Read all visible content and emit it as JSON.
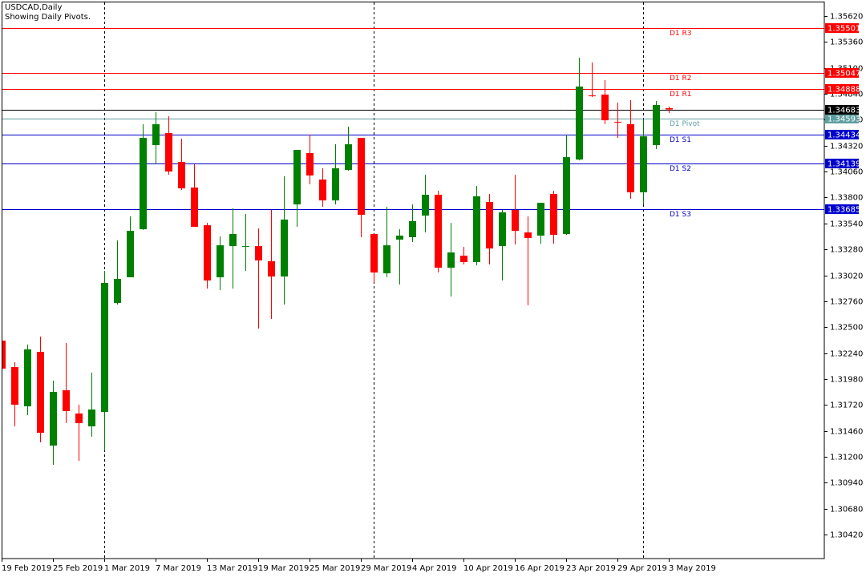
{
  "chart_data": {
    "type": "candlestick",
    "title": "USDCAD,Daily",
    "subtitle": "Showing Daily Pivots.",
    "up_color": "#008000",
    "down_color": "#ff0000",
    "categories": [
      "19 Feb 2019",
      null,
      null,
      null,
      "25 Feb 2019",
      null,
      null,
      null,
      "1 Mar 2019",
      null,
      null,
      null,
      "7 Mar 2019",
      null,
      null,
      null,
      "13 Mar 2019",
      null,
      null,
      null,
      "19 Mar 2019",
      null,
      null,
      null,
      "25 Mar 2019",
      null,
      null,
      null,
      "29 Mar 2019",
      null,
      null,
      null,
      "4 Apr 2019",
      null,
      null,
      null,
      "10 Apr 2019",
      null,
      null,
      null,
      "16 Apr 2019",
      null,
      null,
      null,
      "23 Apr 2019",
      null,
      null,
      null,
      "29 Apr 2019",
      null,
      null,
      null,
      "3 May 2019"
    ],
    "open": [
      1.32365,
      1.321,
      1.31706,
      1.32252,
      1.31312,
      1.31867,
      1.31634,
      1.31505,
      1.3165,
      1.32743,
      1.33,
      1.33482,
      1.34326,
      1.34447,
      1.34157,
      1.339,
      1.33522,
      1.33,
      1.33313,
      1.33305,
      1.33313,
      1.33161,
      1.33008,
      1.33731,
      1.34246,
      1.3398,
      1.33771,
      1.34077,
      1.34398,
      1.33434,
      1.3304,
      1.33378,
      1.33402,
      1.33619,
      1.33828,
      1.33096,
      1.33217,
      1.33153,
      1.33755,
      1.33313,
      1.33675,
      1.3345,
      1.33418,
      1.33836,
      1.33434,
      1.34181,
      1.34824,
      1.34832,
      1.34559,
      1.34535,
      1.33852,
      1.34326,
      1.34696
    ],
    "high": [
      1.32381,
      1.32148,
      1.32325,
      1.32405,
      1.31963,
      1.32341,
      1.31722,
      1.32044,
      1.33064,
      1.3337,
      1.33611,
      1.34535,
      1.34656,
      1.34615,
      1.3439,
      1.34133,
      1.33546,
      1.3341,
      1.33691,
      1.33635,
      1.3349,
      1.33675,
      1.34013,
      1.34278,
      1.3443,
      1.34093,
      1.34334,
      1.34511,
      1.34398,
      1.33434,
      1.33707,
      1.33482,
      1.33731,
      1.34029,
      1.33868,
      1.33546,
      1.33305,
      1.33916,
      1.33836,
      1.33675,
      1.34029,
      1.33611,
      1.33747,
      1.33868,
      1.3443,
      1.35202,
      1.35154,
      1.34977,
      1.34752,
      1.34776,
      1.34575,
      1.34768,
      1.34712
    ],
    "low": [
      1.32068,
      1.31505,
      1.31618,
      1.31344,
      1.31119,
      1.31537,
      1.31159,
      1.31401,
      1.31264,
      1.32727,
      1.33,
      1.33474,
      1.34133,
      1.34029,
      1.33876,
      1.33506,
      1.32887,
      1.32871,
      1.32887,
      1.33064,
      1.32486,
      1.32582,
      1.32727,
      1.33506,
      1.33932,
      1.33707,
      1.33731,
      1.34069,
      1.33402,
      1.32952,
      1.33,
      1.32928,
      1.33354,
      1.3345,
      1.33048,
      1.32807,
      1.33129,
      1.3312,
      1.33129,
      1.32968,
      1.33329,
      1.32719,
      1.33337,
      1.33337,
      1.33426,
      1.34173,
      1.34808,
      1.34535,
      1.34398,
      1.33788,
      1.33731,
      1.34286,
      1.34648
    ],
    "close": [
      1.32084,
      1.31722,
      1.32277,
      1.31441,
      1.31851,
      1.31658,
      1.31537,
      1.31674,
      1.32944,
      1.32984,
      1.33466,
      1.34398,
      1.34535,
      1.34061,
      1.33892,
      1.33506,
      1.32968,
      1.33321,
      1.33434,
      1.33313,
      1.33169,
      1.33008,
      1.33579,
      1.34278,
      1.34021,
      1.33771,
      1.34093,
      1.34334,
      1.33627,
      1.33048,
      1.33321,
      1.33418,
      1.33563,
      1.33828,
      1.33096,
      1.33249,
      1.33153,
      1.33812,
      1.33289,
      1.33651,
      1.33466,
      1.33394,
      1.33747,
      1.33426,
      1.34205,
      1.34913,
      1.34816,
      1.34575,
      1.34551,
      1.33852,
      1.34414,
      1.34728,
      1.34683
    ],
    "ylim": [
      1.30179,
      1.35765
    ],
    "yticks": [
      {
        "value": 1.3562,
        "label": "1.35620"
      },
      {
        "value": 1.3536,
        "label": "1.35360"
      },
      {
        "value": 1.351,
        "label": "1.35100"
      },
      {
        "value": 1.3484,
        "label": "1.34840"
      },
      {
        "value": 1.3458,
        "label": "1.34580"
      },
      {
        "value": 1.3432,
        "label": "1.34320"
      },
      {
        "value": 1.3406,
        "label": "1.34060"
      },
      {
        "value": 1.338,
        "label": "1.33800"
      },
      {
        "value": 1.3354,
        "label": "1.33540"
      },
      {
        "value": 1.3328,
        "label": "1.33280"
      },
      {
        "value": 1.3302,
        "label": "1.33020"
      },
      {
        "value": 1.3276,
        "label": "1.32760"
      },
      {
        "value": 1.325,
        "label": "1.32500"
      },
      {
        "value": 1.3224,
        "label": "1.32240"
      },
      {
        "value": 1.3198,
        "label": "1.31980"
      },
      {
        "value": 1.3172,
        "label": "1.31720"
      },
      {
        "value": 1.3146,
        "label": "1.31460"
      },
      {
        "value": 1.312,
        "label": "1.31200"
      },
      {
        "value": 1.3094,
        "label": "1.30940"
      },
      {
        "value": 1.3068,
        "label": "1.30680"
      },
      {
        "value": 1.3042,
        "label": "1.30420"
      }
    ],
    "levels": [
      {
        "name": "D1 R3",
        "value": 1.35501,
        "color": "#ff0000"
      },
      {
        "name": "D1 R2",
        "value": 1.35047,
        "color": "#ff0000"
      },
      {
        "name": "D1 R1",
        "value": 1.34888,
        "color": "#ff0000"
      },
      {
        "name": "D1 Pivot",
        "value": 1.34593,
        "color": "#5f9ea0"
      },
      {
        "name": "D1 S1",
        "value": 1.34434,
        "color": "#0000cd"
      },
      {
        "name": "D1 S2",
        "value": 1.34139,
        "color": "#0000cd"
      },
      {
        "name": "D1 S3",
        "value": 1.33685,
        "color": "#0000cd"
      }
    ],
    "last_price_color": "#000000"
  }
}
